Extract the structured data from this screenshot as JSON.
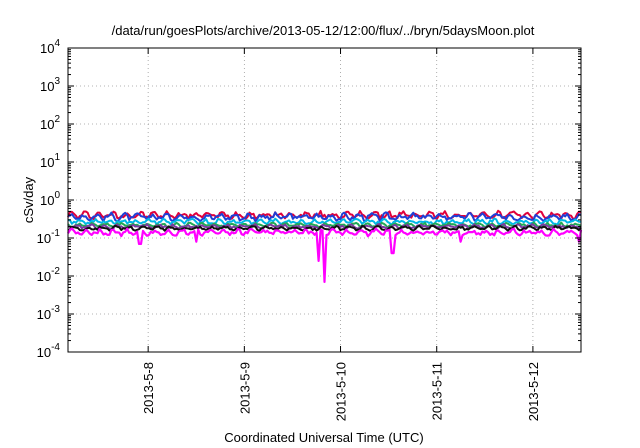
{
  "chart_data": {
    "type": "line",
    "title": "/data/run/goesPlots/archive/2013-05-12/12:00/flux/../bryn/5daysMoon.plot",
    "xlabel": "Coordinated Universal Time (UTC)",
    "ylabel": "cSv/day",
    "yscale": "log",
    "ylim": [
      0.0001,
      10000
    ],
    "xlim": [
      "2013-05-07T04:00",
      "2013-05-12T12:00"
    ],
    "grid": true,
    "x_ticks": [
      "2013-5-8",
      "2013-5-9",
      "2013-5-10",
      "2013-5-11",
      "2013-5-12"
    ],
    "y_ticks": [
      {
        "base": "10",
        "exp": "-4"
      },
      {
        "base": "10",
        "exp": "-3"
      },
      {
        "base": "10",
        "exp": "-2"
      },
      {
        "base": "10",
        "exp": "-1"
      },
      {
        "base": "10",
        "exp": "0"
      },
      {
        "base": "10",
        "exp": "1"
      },
      {
        "base": "10",
        "exp": "2"
      },
      {
        "base": "10",
        "exp": "3"
      },
      {
        "base": "10",
        "exp": "4"
      }
    ],
    "series": [
      {
        "color": "#e0003c",
        "level": 0.4,
        "noise": 0.35,
        "dips": []
      },
      {
        "color": "#1f3fd6",
        "level": 0.36,
        "noise": 0.35,
        "dips": []
      },
      {
        "color": "#00b7e6",
        "level": 0.27,
        "noise": 0.25,
        "dips": []
      },
      {
        "color": "#22aa55",
        "level": 0.22,
        "noise": 0.2,
        "dips": []
      },
      {
        "color": "#7a3aa0",
        "level": 0.2,
        "noise": 0.2,
        "dips": []
      },
      {
        "color": "#111111",
        "level": 0.18,
        "noise": 0.2,
        "dips": []
      },
      {
        "color": "#ff00ff",
        "level": 0.14,
        "noise": 0.3,
        "dips": [
          {
            "x": "2013-05-09T18:30",
            "y": 0.025
          },
          {
            "x": "2013-05-09T20:00",
            "y": 0.007
          },
          {
            "x": "2013-05-10T13:00",
            "y": 0.04
          },
          {
            "x": "2013-05-07T22:00",
            "y": 0.07
          },
          {
            "x": "2013-05-08T12:00",
            "y": 0.08
          },
          {
            "x": "2013-05-11T06:00",
            "y": 0.08
          },
          {
            "x": "2013-05-12T11:30",
            "y": 0.08
          }
        ]
      }
    ]
  }
}
